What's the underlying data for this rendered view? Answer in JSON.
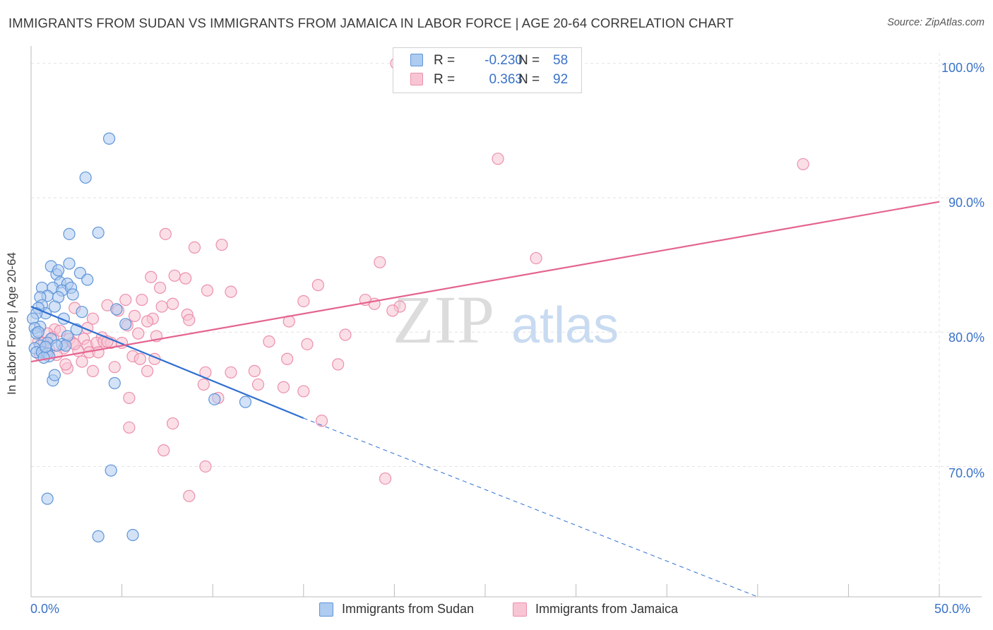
{
  "header": {
    "title": "IMMIGRANTS FROM SUDAN VS IMMIGRANTS FROM JAMAICA IN LABOR FORCE | AGE 20-64 CORRELATION CHART",
    "source": "Source: ZipAtlas.com"
  },
  "legend": {
    "rows": [
      {
        "r_label": "R =",
        "r_value": "-0.230",
        "n_label": "N =",
        "n_value": "58"
      },
      {
        "r_label": "R =",
        "r_value": "0.363",
        "n_label": "N =",
        "n_value": "92"
      }
    ]
  },
  "colors": {
    "sudan_fill": "#aecbf0",
    "sudan_stroke": "#5f95d8",
    "sudan_line": "#2e6fd1",
    "jamaica_fill": "#f8c5d4",
    "jamaica_stroke": "#ec8fac",
    "jamaica_line": "#e4648f",
    "tick_text": "#3a72c8",
    "grid": "#e2e2e2"
  },
  "chart_data": {
    "type": "scatter",
    "title": "IMMIGRANTS FROM SUDAN VS IMMIGRANTS FROM JAMAICA IN LABOR FORCE | AGE 20-64 CORRELATION CHART",
    "xlabel": "",
    "ylabel": "In Labor Force | Age 20-64",
    "xlim": [
      0,
      50
    ],
    "ylim": [
      60.3,
      101.3
    ],
    "x_tick_labels": [
      "0.0%",
      "50.0%"
    ],
    "y_ticks": [
      70,
      80,
      90,
      100
    ],
    "y_tick_labels": [
      "70.0%",
      "80.0%",
      "90.0%",
      "100.0%"
    ],
    "watermark": {
      "part1": "ZIP",
      "part2": "atlas"
    },
    "series": [
      {
        "name": "Immigrants from Sudan",
        "r": -0.23,
        "n": 58,
        "trend": {
          "x0": 0,
          "y0": 81.9,
          "x_solid_end": 15.0,
          "y_solid_end": 73.6,
          "x_dash_end": 40.0,
          "y_dash_end": 60.3
        },
        "points": [
          [
            4.3,
            94.4
          ],
          [
            3.0,
            91.5
          ],
          [
            2.1,
            87.3
          ],
          [
            3.7,
            87.4
          ],
          [
            2.1,
            85.1
          ],
          [
            1.1,
            84.9
          ],
          [
            1.4,
            84.3
          ],
          [
            1.5,
            84.6
          ],
          [
            2.7,
            84.4
          ],
          [
            3.1,
            83.9
          ],
          [
            1.6,
            83.7
          ],
          [
            2.0,
            83.6
          ],
          [
            0.6,
            83.3
          ],
          [
            1.2,
            83.3
          ],
          [
            1.7,
            83.1
          ],
          [
            2.2,
            83.3
          ],
          [
            2.3,
            82.8
          ],
          [
            0.9,
            82.7
          ],
          [
            1.5,
            82.6
          ],
          [
            0.5,
            82.6
          ],
          [
            0.6,
            82.0
          ],
          [
            1.3,
            81.9
          ],
          [
            0.8,
            81.4
          ],
          [
            0.4,
            81.8
          ],
          [
            0.3,
            81.4
          ],
          [
            0.1,
            81.0
          ],
          [
            2.8,
            81.5
          ],
          [
            1.8,
            81.0
          ],
          [
            0.5,
            80.4
          ],
          [
            0.2,
            80.3
          ],
          [
            0.3,
            79.9
          ],
          [
            2.0,
            79.7
          ],
          [
            1.1,
            79.5
          ],
          [
            1.7,
            79.1
          ],
          [
            0.9,
            79.2
          ],
          [
            0.5,
            79.0
          ],
          [
            1.9,
            79.0
          ],
          [
            0.2,
            78.8
          ],
          [
            0.3,
            78.5
          ],
          [
            0.6,
            78.5
          ],
          [
            0.9,
            78.4
          ],
          [
            1.0,
            78.2
          ],
          [
            0.7,
            78.1
          ],
          [
            5.2,
            80.6
          ],
          [
            4.7,
            81.7
          ],
          [
            1.2,
            76.4
          ],
          [
            1.3,
            76.8
          ],
          [
            4.6,
            76.2
          ],
          [
            10.1,
            75.0
          ],
          [
            11.8,
            74.8
          ],
          [
            4.4,
            69.7
          ],
          [
            0.9,
            67.6
          ],
          [
            3.7,
            64.8
          ],
          [
            5.6,
            64.9
          ],
          [
            0.8,
            78.9
          ],
          [
            1.4,
            79.0
          ],
          [
            2.5,
            80.2
          ],
          [
            0.4,
            80.0
          ]
        ]
      },
      {
        "name": "Immigrants from Jamaica",
        "r": 0.363,
        "n": 92,
        "trend": {
          "x0": 0,
          "y0": 77.8,
          "x1": 50,
          "y1": 89.7
        },
        "points": [
          [
            20.1,
            100.0
          ],
          [
            25.7,
            92.9
          ],
          [
            42.5,
            92.5
          ],
          [
            7.4,
            87.3
          ],
          [
            9.0,
            86.3
          ],
          [
            10.5,
            86.5
          ],
          [
            27.8,
            85.5
          ],
          [
            19.2,
            85.2
          ],
          [
            6.6,
            84.1
          ],
          [
            7.9,
            84.2
          ],
          [
            8.5,
            84.0
          ],
          [
            15.8,
            83.5
          ],
          [
            7.1,
            83.3
          ],
          [
            9.7,
            83.1
          ],
          [
            11.0,
            83.0
          ],
          [
            6.1,
            82.4
          ],
          [
            15.0,
            82.3
          ],
          [
            18.9,
            82.1
          ],
          [
            4.2,
            82.0
          ],
          [
            7.2,
            81.9
          ],
          [
            7.8,
            82.1
          ],
          [
            20.3,
            81.9
          ],
          [
            19.9,
            81.6
          ],
          [
            2.4,
            81.8
          ],
          [
            4.8,
            81.6
          ],
          [
            8.6,
            81.3
          ],
          [
            5.7,
            81.2
          ],
          [
            6.7,
            81.0
          ],
          [
            8.7,
            80.9
          ],
          [
            3.4,
            81.0
          ],
          [
            6.4,
            80.8
          ],
          [
            14.2,
            80.8
          ],
          [
            5.3,
            80.5
          ],
          [
            3.1,
            80.3
          ],
          [
            1.3,
            80.2
          ],
          [
            5.9,
            79.9
          ],
          [
            17.3,
            79.8
          ],
          [
            0.9,
            79.9
          ],
          [
            1.2,
            79.6
          ],
          [
            2.1,
            79.5
          ],
          [
            2.9,
            79.5
          ],
          [
            3.9,
            79.6
          ],
          [
            6.9,
            79.7
          ],
          [
            15.2,
            79.1
          ],
          [
            3.1,
            79.0
          ],
          [
            3.6,
            79.2
          ],
          [
            4.0,
            79.3
          ],
          [
            4.4,
            79.2
          ],
          [
            5.0,
            79.2
          ],
          [
            1.0,
            78.7
          ],
          [
            1.8,
            78.8
          ],
          [
            2.6,
            78.6
          ],
          [
            3.2,
            78.5
          ],
          [
            0.5,
            78.3
          ],
          [
            1.4,
            78.3
          ],
          [
            5.6,
            78.2
          ],
          [
            6.8,
            78.0
          ],
          [
            6.0,
            78.0
          ],
          [
            14.1,
            78.0
          ],
          [
            2.8,
            77.8
          ],
          [
            16.9,
            77.6
          ],
          [
            2.0,
            77.3
          ],
          [
            4.6,
            77.4
          ],
          [
            3.4,
            77.1
          ],
          [
            6.4,
            77.1
          ],
          [
            9.6,
            77.0
          ],
          [
            11.0,
            77.0
          ],
          [
            12.3,
            77.1
          ],
          [
            9.5,
            76.1
          ],
          [
            12.5,
            76.1
          ],
          [
            13.9,
            75.9
          ],
          [
            15.0,
            75.6
          ],
          [
            5.4,
            75.1
          ],
          [
            10.3,
            75.1
          ],
          [
            16.0,
            73.4
          ],
          [
            5.4,
            72.9
          ],
          [
            7.8,
            73.2
          ],
          [
            7.3,
            71.2
          ],
          [
            9.6,
            70.0
          ],
          [
            19.5,
            69.1
          ],
          [
            8.7,
            67.8
          ],
          [
            0.4,
            79.3
          ],
          [
            1.6,
            80.1
          ],
          [
            2.3,
            79.2
          ],
          [
            3.7,
            78.5
          ],
          [
            1.9,
            77.6
          ],
          [
            0.7,
            79.2
          ],
          [
            4.2,
            79.3
          ],
          [
            13.1,
            79.3
          ],
          [
            2.4,
            79.1
          ],
          [
            18.4,
            82.4
          ],
          [
            5.2,
            82.4
          ]
        ]
      }
    ]
  },
  "bottom_legend": {
    "items": [
      {
        "label": "Immigrants from Sudan"
      },
      {
        "label": "Immigrants from Jamaica"
      }
    ]
  }
}
